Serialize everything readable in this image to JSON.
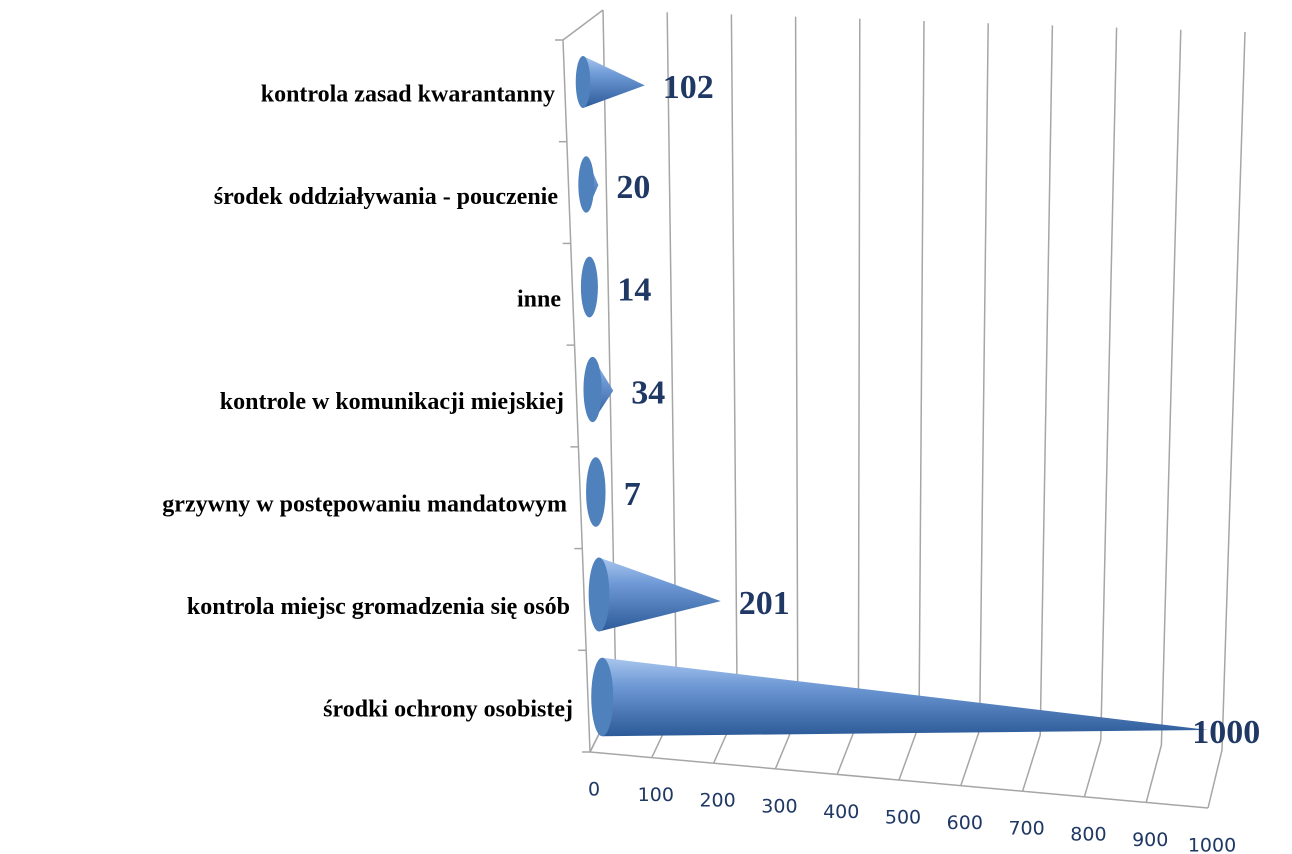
{
  "chart_data": {
    "type": "bar",
    "categories": [
      "kontrola zasad kwarantanny",
      "środek oddziaływania - pouczenie",
      "inne",
      "kontrole w komunikacji miejskiej",
      "grzywny w postępowaniu mandatowym",
      "kontrola miejsc gromadzenia się osób",
      "środki ochrony osobistej"
    ],
    "values": [
      102,
      20,
      14,
      34,
      7,
      201,
      1000
    ],
    "color": "#4f81bd",
    "xlim": [
      0,
      1000
    ],
    "xticks": [
      0,
      100,
      200,
      300,
      400,
      500,
      600,
      700,
      800,
      900,
      1000
    ],
    "grid": true
  }
}
